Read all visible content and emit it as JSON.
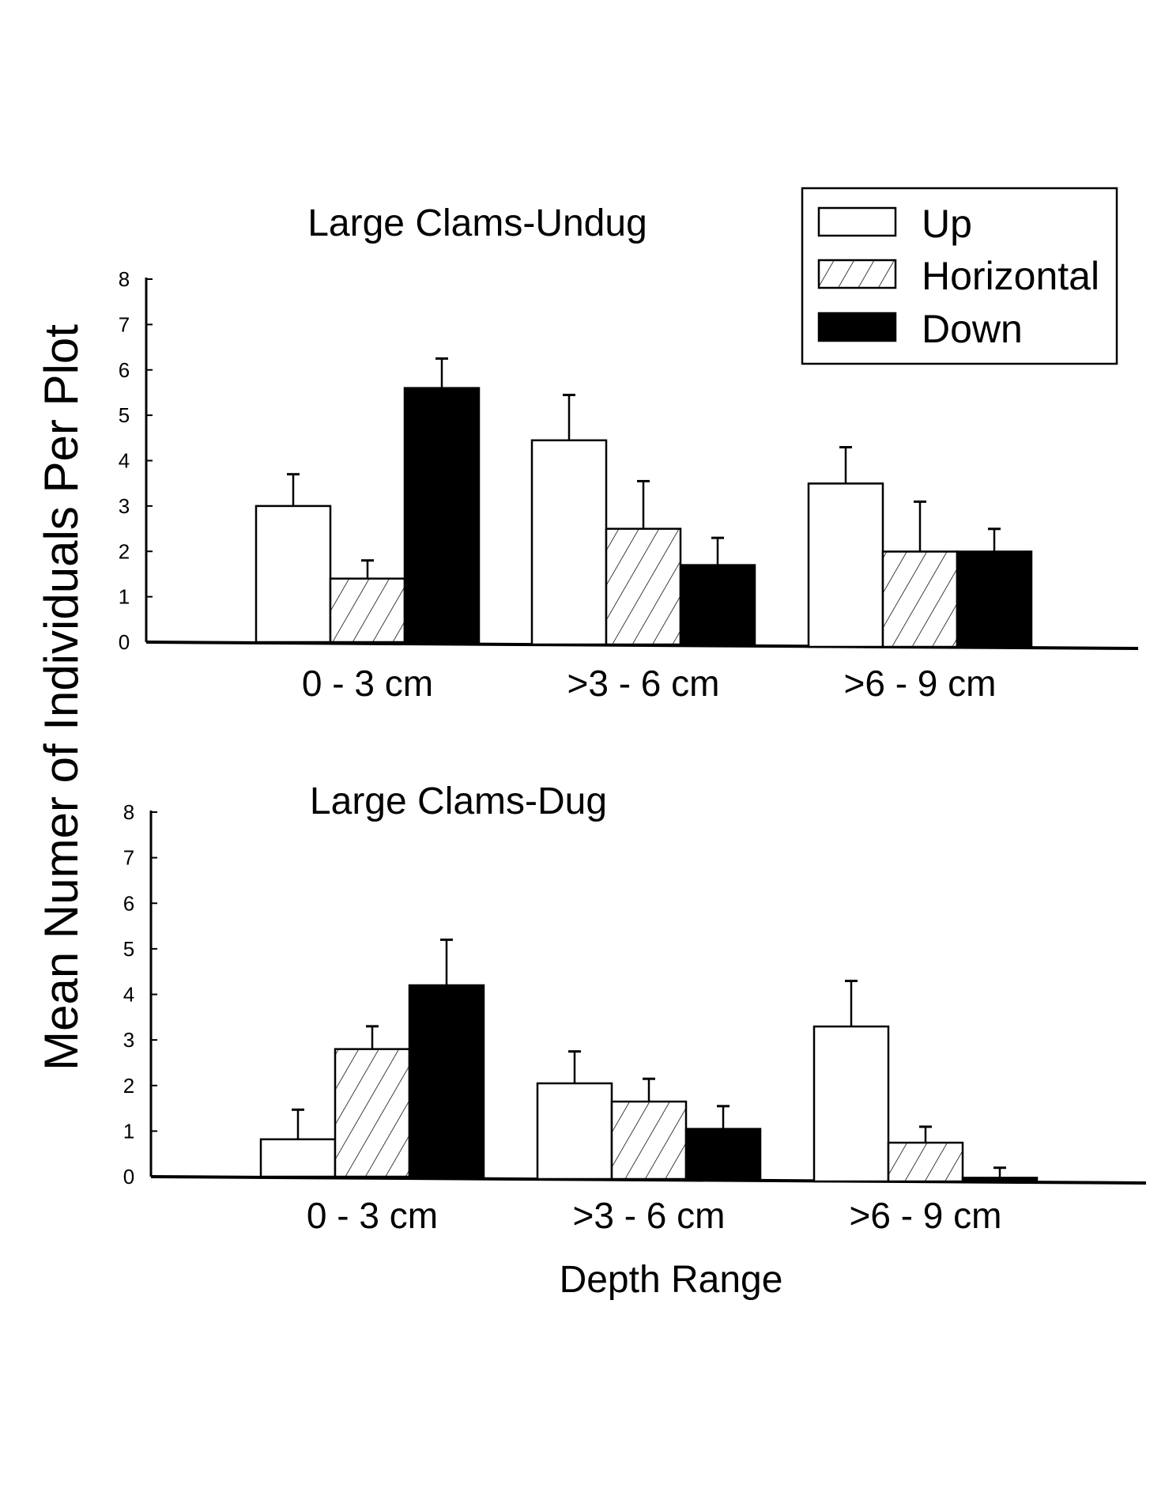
{
  "chart_data": [
    {
      "type": "bar",
      "title": "Large Clams-Undug",
      "categories": [
        "0 - 3 cm",
        ">3 - 6 cm",
        ">6 - 9 cm"
      ],
      "ylim": [
        0,
        8
      ],
      "yticks": [
        "0",
        "1",
        "2",
        "3",
        "4",
        "5",
        "6",
        "7",
        "8"
      ],
      "series": [
        {
          "name": "Up",
          "values": [
            3.0,
            4.5,
            3.6
          ],
          "error": [
            0.7,
            1.0,
            0.8
          ]
        },
        {
          "name": "Horizontal",
          "values": [
            1.4,
            2.55,
            2.1
          ],
          "error": [
            0.4,
            1.05,
            1.1
          ]
        },
        {
          "name": "Down",
          "values": [
            5.6,
            1.75,
            2.1
          ],
          "error": [
            0.65,
            0.6,
            0.5
          ]
        }
      ]
    },
    {
      "type": "bar",
      "title": "Large Clams-Dug",
      "categories": [
        "0 - 3 cm",
        ">3 - 6 cm",
        ">6 - 9 cm"
      ],
      "ylim": [
        0,
        8
      ],
      "yticks": [
        "0",
        "1",
        "2",
        "3",
        "4",
        "5",
        "6",
        "7",
        "8"
      ],
      "series": [
        {
          "name": "Up",
          "values": [
            0.82,
            2.1,
            3.4
          ],
          "error": [
            0.65,
            0.7,
            1.0
          ]
        },
        {
          "name": "Horizontal",
          "values": [
            2.8,
            1.7,
            0.85
          ],
          "error": [
            0.5,
            0.5,
            0.35
          ]
        },
        {
          "name": "Down",
          "values": [
            4.2,
            1.1,
            0.08
          ],
          "error": [
            1.0,
            0.5,
            0.22
          ]
        }
      ]
    }
  ],
  "ylabel": "Mean Numer of Individuals Per Plot",
  "xlabel": "Depth Range",
  "legend": {
    "position": "top-right",
    "entries": [
      "Up",
      "Horizontal",
      "Down"
    ]
  }
}
